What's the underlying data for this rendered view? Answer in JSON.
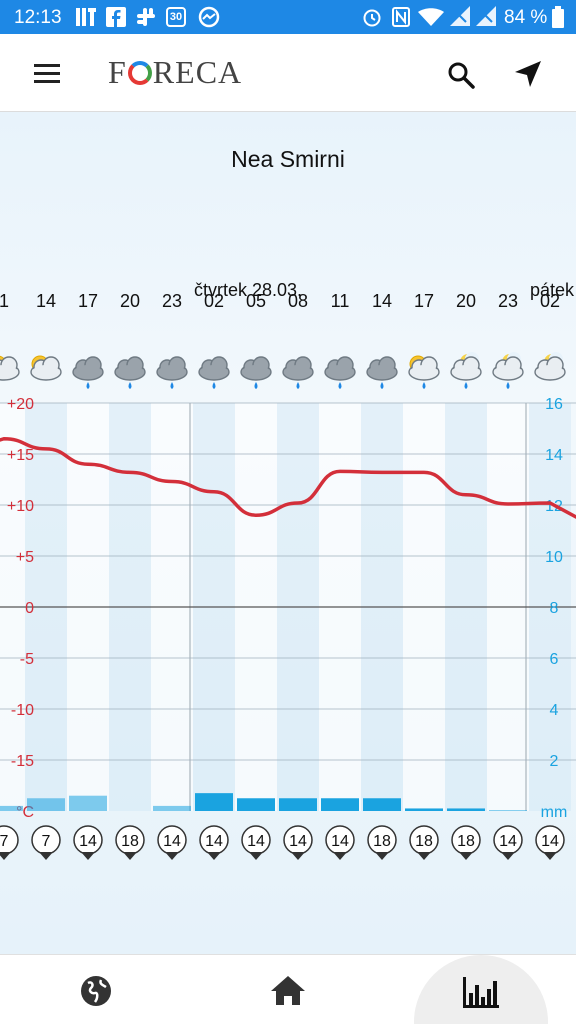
{
  "status_bar": {
    "time": "12:13",
    "battery": "84 %",
    "icons": [
      "ift-icon",
      "facebook-icon",
      "slack-icon",
      "calendar-icon",
      "messenger-icon",
      "alarm-icon",
      "nfc-icon",
      "wifi-icon",
      "signal-icon",
      "signal-icon-2",
      "battery-icon"
    ],
    "calendar_day": "30"
  },
  "app_bar": {
    "logo": "FORECA",
    "logo_left": "F",
    "logo_right": "RECA"
  },
  "location": "Nea Smirni",
  "days": [
    {
      "label": "čtvrtek 28.03."
    },
    {
      "label": "pátek"
    }
  ],
  "hours": [
    "1",
    "14",
    "17",
    "20",
    "23",
    "02",
    "05",
    "08",
    "11",
    "14",
    "17",
    "20",
    "23",
    "02"
  ],
  "weather_icons": [
    "partly-cloudy-icon",
    "partly-cloudy-icon",
    "cloud-rain-icon",
    "cloud-rain-icon",
    "cloud-rain-icon",
    "cloud-rain-icon",
    "cloud-rain-icon",
    "cloud-rain-icon",
    "cloud-rain-icon",
    "cloud-rain-icon",
    "sun-cloud-rain-icon",
    "moon-cloud-rain-icon",
    "moon-cloud-rain-icon",
    "moon-cloud-icon"
  ],
  "left_axis_labels": [
    "+20",
    "+15",
    "+10",
    "+5",
    "0",
    "-5",
    "-10",
    "-15",
    "°C"
  ],
  "right_axis_labels": [
    "16",
    "14",
    "12",
    "10",
    "8",
    "6",
    "4",
    "2",
    "mm"
  ],
  "wind_speeds": [
    "7",
    "7",
    "14",
    "18",
    "14",
    "14",
    "14",
    "14",
    "14",
    "18",
    "18",
    "18",
    "14",
    "14"
  ],
  "colors": {
    "status_bar": "#1e88e5",
    "temperature_line": "#d32f3a",
    "precip_bar": "#1aa3e0",
    "left_axis": "#d32f3a",
    "right_axis": "#1aa3e0"
  },
  "chart_data": {
    "type": "line",
    "title": "",
    "x": [
      "1",
      "14",
      "17",
      "20",
      "23",
      "02",
      "05",
      "08",
      "11",
      "14",
      "17",
      "20",
      "23",
      "02"
    ],
    "series": [
      {
        "values": [
          16.5,
          15.5,
          14.0,
          13.2,
          12.3,
          11.3,
          9.0,
          10.2,
          13.3,
          13.2,
          13.2,
          11.0,
          10.1,
          10.2
        ]
      },
      {
        "values": [
          0.2,
          0.5,
          0.6,
          0,
          0.2,
          0.7,
          0.5,
          0.5,
          0.5,
          0.5,
          0.1,
          0.1,
          0.02,
          0
        ]
      }
    ],
    "series_units": [
      "°C",
      "mm"
    ],
    "ylim_left": [
      -20,
      20
    ],
    "ylim_right": [
      0,
      16
    ],
    "grid": true
  },
  "bottom_nav": [
    {
      "name": "globe",
      "icon": "globe-icon"
    },
    {
      "name": "home",
      "icon": "home-icon"
    },
    {
      "name": "chart",
      "icon": "bar-chart-icon",
      "active": true
    }
  ]
}
